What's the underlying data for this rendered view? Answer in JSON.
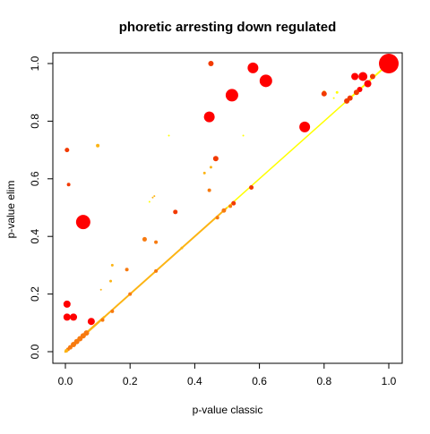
{
  "chart_data": {
    "type": "scatter",
    "title": "phoretic arresting down regulated",
    "xlabel": "p-value classic",
    "ylabel": "p-value elim",
    "xlim": [
      0,
      1
    ],
    "ylim": [
      0,
      1
    ],
    "x_ticks": [
      "0.0",
      "0.2",
      "0.4",
      "0.6",
      "0.8",
      "1.0"
    ],
    "y_ticks": [
      "0.0",
      "0.2",
      "0.4",
      "0.6",
      "0.8",
      "1.0"
    ],
    "grid": false,
    "legend": "none",
    "colors": {
      "red": "#ff0000",
      "red_orange": "#f23a00",
      "orange": "#f77a0f",
      "light_orange": "#fcb414",
      "yellow": "#ffff00",
      "frame": "#000000"
    },
    "points": [
      {
        "x": 1.0,
        "y": 1.0,
        "r": 11,
        "c": "red"
      },
      {
        "x": 0.45,
        "y": 1.0,
        "r": 3,
        "c": "red_orange"
      },
      {
        "x": 0.58,
        "y": 0.985,
        "r": 6,
        "c": "red"
      },
      {
        "x": 0.62,
        "y": 0.94,
        "r": 7,
        "c": "red"
      },
      {
        "x": 0.515,
        "y": 0.89,
        "r": 7,
        "c": "red"
      },
      {
        "x": 0.445,
        "y": 0.815,
        "r": 6,
        "c": "red"
      },
      {
        "x": 0.74,
        "y": 0.78,
        "r": 6,
        "c": "red"
      },
      {
        "x": 0.92,
        "y": 0.955,
        "r": 5,
        "c": "red"
      },
      {
        "x": 0.895,
        "y": 0.955,
        "r": 4,
        "c": "red"
      },
      {
        "x": 0.95,
        "y": 0.955,
        "r": 3,
        "c": "red_orange"
      },
      {
        "x": 0.935,
        "y": 0.93,
        "r": 4,
        "c": "red"
      },
      {
        "x": 0.8,
        "y": 0.895,
        "r": 3,
        "c": "red_orange"
      },
      {
        "x": 0.8,
        "y": 0.9,
        "r": 2,
        "c": "light_orange"
      },
      {
        "x": 0.91,
        "y": 0.91,
        "r": 3,
        "c": "red"
      },
      {
        "x": 0.9,
        "y": 0.9,
        "r": 3,
        "c": "red_orange"
      },
      {
        "x": 0.88,
        "y": 0.88,
        "r": 3,
        "c": "red_orange"
      },
      {
        "x": 0.87,
        "y": 0.87,
        "r": 3,
        "c": "red_orange"
      },
      {
        "x": 0.84,
        "y": 0.9,
        "r": 1.5,
        "c": "yellow"
      },
      {
        "x": 0.83,
        "y": 0.88,
        "r": 1,
        "c": "yellow"
      },
      {
        "x": 0.55,
        "y": 0.75,
        "r": 1,
        "c": "yellow"
      },
      {
        "x": 0.32,
        "y": 0.75,
        "r": 1,
        "c": "yellow"
      },
      {
        "x": 0.005,
        "y": 0.7,
        "r": 2.5,
        "c": "red_orange"
      },
      {
        "x": 0.1,
        "y": 0.715,
        "r": 2,
        "c": "light_orange"
      },
      {
        "x": 0.465,
        "y": 0.67,
        "r": 3,
        "c": "red_orange"
      },
      {
        "x": 0.45,
        "y": 0.64,
        "r": 1.5,
        "c": "light_orange"
      },
      {
        "x": 0.43,
        "y": 0.62,
        "r": 1.5,
        "c": "light_orange"
      },
      {
        "x": 0.01,
        "y": 0.58,
        "r": 2,
        "c": "red_orange"
      },
      {
        "x": 0.575,
        "y": 0.57,
        "r": 2.5,
        "c": "red_orange"
      },
      {
        "x": 0.445,
        "y": 0.56,
        "r": 2,
        "c": "orange"
      },
      {
        "x": 0.275,
        "y": 0.54,
        "r": 1,
        "c": "light_orange"
      },
      {
        "x": 0.27,
        "y": 0.535,
        "r": 1,
        "c": "light_orange"
      },
      {
        "x": 0.26,
        "y": 0.52,
        "r": 1,
        "c": "yellow"
      },
      {
        "x": 0.055,
        "y": 0.45,
        "r": 8,
        "c": "red"
      },
      {
        "x": 0.34,
        "y": 0.485,
        "r": 2.5,
        "c": "red_orange"
      },
      {
        "x": 0.245,
        "y": 0.39,
        "r": 2.5,
        "c": "orange"
      },
      {
        "x": 0.28,
        "y": 0.38,
        "r": 2,
        "c": "orange"
      },
      {
        "x": 0.145,
        "y": 0.3,
        "r": 1.5,
        "c": "light_orange"
      },
      {
        "x": 0.19,
        "y": 0.285,
        "r": 2,
        "c": "orange"
      },
      {
        "x": 0.14,
        "y": 0.245,
        "r": 1.5,
        "c": "light_orange"
      },
      {
        "x": 0.11,
        "y": 0.215,
        "r": 1,
        "c": "light_orange"
      },
      {
        "x": 0.005,
        "y": 0.165,
        "r": 4,
        "c": "red"
      },
      {
        "x": 0.005,
        "y": 0.12,
        "r": 4,
        "c": "red"
      },
      {
        "x": 0.025,
        "y": 0.12,
        "r": 4,
        "c": "red"
      },
      {
        "x": 0.08,
        "y": 0.105,
        "r": 4,
        "c": "red"
      },
      {
        "x": 0.115,
        "y": 0.11,
        "r": 2,
        "c": "orange"
      },
      {
        "x": 0.145,
        "y": 0.14,
        "r": 2,
        "c": "orange"
      },
      {
        "x": 0.2,
        "y": 0.2,
        "r": 2,
        "c": "orange"
      },
      {
        "x": 0.28,
        "y": 0.28,
        "r": 2,
        "c": "orange"
      },
      {
        "x": 0.36,
        "y": 0.36,
        "r": 1.5,
        "c": "light_orange"
      },
      {
        "x": 0.47,
        "y": 0.465,
        "r": 2,
        "c": "orange"
      },
      {
        "x": 0.49,
        "y": 0.49,
        "r": 2.5,
        "c": "orange"
      },
      {
        "x": 0.52,
        "y": 0.515,
        "r": 2.5,
        "c": "red_orange"
      },
      {
        "x": 0.51,
        "y": 0.505,
        "r": 2,
        "c": "orange"
      },
      {
        "x": 0.055,
        "y": 0.055,
        "r": 3,
        "c": "orange"
      },
      {
        "x": 0.065,
        "y": 0.065,
        "r": 3,
        "c": "orange"
      },
      {
        "x": 0.045,
        "y": 0.045,
        "r": 3,
        "c": "orange"
      },
      {
        "x": 0.035,
        "y": 0.035,
        "r": 3,
        "c": "orange"
      },
      {
        "x": 0.025,
        "y": 0.025,
        "r": 3,
        "c": "orange"
      },
      {
        "x": 0.015,
        "y": 0.015,
        "r": 2.5,
        "c": "orange"
      },
      {
        "x": 0.008,
        "y": 0.008,
        "r": 2,
        "c": "orange"
      },
      {
        "x": 0.003,
        "y": 0.003,
        "r": 2,
        "c": "light_orange"
      }
    ],
    "diagonal_segments": [
      {
        "x0": 0.0,
        "x1": 0.12,
        "w": 2.5,
        "c": "light_orange"
      },
      {
        "x0": 0.12,
        "x1": 0.5,
        "w": 2,
        "c": "light_orange"
      },
      {
        "x0": 0.5,
        "x1": 0.88,
        "w": 1.5,
        "c": "yellow"
      },
      {
        "x0": 0.88,
        "x1": 1.0,
        "w": 2,
        "c": "yellow"
      }
    ]
  }
}
